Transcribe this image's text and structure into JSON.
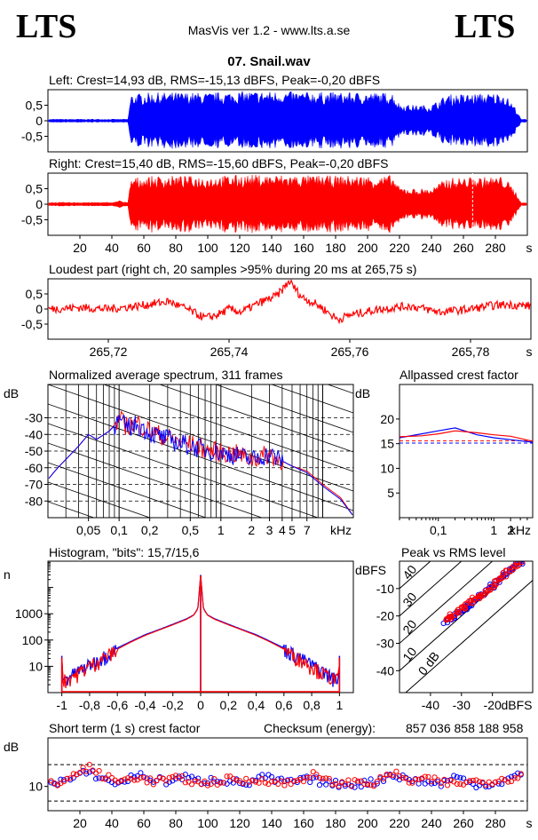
{
  "header": {
    "logo_left": "LTS",
    "logo_right": "LTS",
    "app_title": "MasVis ver 1.2 - www.lts.a.se",
    "file_name": "07. Snail.wav"
  },
  "colors": {
    "left": "#0000ff",
    "right": "#ff0000",
    "black": "#000000"
  },
  "chart_data": [
    {
      "id": "left-waveform",
      "type": "area",
      "title": "Left: Crest=14,93 dB, RMS=-15,13 dBFS, Peak=-0,20 dBFS",
      "ytick_labels": [
        "0,5",
        "0",
        "-0,5"
      ],
      "yticks": [
        0.5,
        0,
        -0.5
      ],
      "ylim": [
        -1,
        1
      ],
      "xlim": [
        0,
        300
      ],
      "color": "#0000ff",
      "envelope": {
        "x": [
          0,
          50,
          52,
          60,
          80,
          100,
          110,
          120,
          150,
          160,
          180,
          200,
          210,
          215,
          220,
          230,
          240,
          250,
          270,
          285,
          290,
          293,
          296,
          300
        ],
        "amp": [
          0.05,
          0.05,
          0.85,
          0.9,
          0.92,
          0.9,
          0.93,
          0.95,
          0.95,
          0.93,
          0.92,
          0.92,
          0.9,
          0.95,
          0.55,
          0.5,
          0.52,
          0.85,
          0.88,
          0.9,
          0.6,
          0.4,
          0.05,
          0.05
        ]
      }
    },
    {
      "id": "right-waveform",
      "type": "area",
      "title": "Right: Crest=15,40 dB, RMS=-15,60 dBFS, Peak=-0,20 dBFS",
      "ytick_labels": [
        "0,5",
        "0",
        "-0,5"
      ],
      "yticks": [
        0.5,
        0,
        -0.5
      ],
      "ylim": [
        -1,
        1
      ],
      "xlim": [
        0,
        300
      ],
      "xticks": [
        20,
        40,
        60,
        80,
        100,
        120,
        140,
        160,
        180,
        200,
        220,
        240,
        260,
        280
      ],
      "xtick_labels": [
        "20",
        "40",
        "60",
        "80",
        "100",
        "120",
        "140",
        "160",
        "180",
        "200",
        "220",
        "240",
        "260",
        "280"
      ],
      "xunit": "s",
      "color": "#ff0000",
      "marker_x": 265.75,
      "envelope": {
        "x": [
          0,
          40,
          45,
          50,
          52,
          60,
          80,
          100,
          120,
          150,
          160,
          180,
          200,
          210,
          215,
          220,
          230,
          240,
          250,
          270,
          285,
          290,
          293,
          296,
          300
        ],
        "amp": [
          0.06,
          0.06,
          0.12,
          0.05,
          0.85,
          0.9,
          0.92,
          0.9,
          0.95,
          0.95,
          0.93,
          0.92,
          0.92,
          0.9,
          0.95,
          0.55,
          0.5,
          0.52,
          0.85,
          0.88,
          0.9,
          0.6,
          0.4,
          0.05,
          0.05
        ]
      }
    },
    {
      "id": "loudest-part",
      "type": "line",
      "title": "Loudest part (right ch, 20 samples >95% during 20 ms at 265,75 s)",
      "ytick_labels": [
        "0,5",
        "0",
        "-0,5"
      ],
      "yticks": [
        0.5,
        0,
        -0.5
      ],
      "ylim": [
        -1,
        1
      ],
      "xlim": [
        265.71,
        265.79
      ],
      "xticks": [
        265.72,
        265.74,
        265.76,
        265.78
      ],
      "xtick_labels": [
        "265,72",
        "265,74",
        "265,76",
        "265,78"
      ],
      "xunit": "s",
      "color": "#ff0000",
      "x": [
        265.71,
        265.715,
        265.72,
        265.725,
        265.73,
        265.733,
        265.736,
        265.738,
        265.74,
        265.742,
        265.745,
        265.748,
        265.75,
        265.752,
        265.755,
        265.758,
        265.76,
        265.765,
        265.77,
        265.775,
        265.78,
        265.783,
        265.786,
        265.79
      ],
      "y": [
        0.0,
        0.05,
        0.0,
        0.1,
        0.25,
        0.0,
        -0.3,
        -0.2,
        0.0,
        -0.1,
        0.2,
        0.45,
        0.92,
        0.4,
        0.1,
        -0.35,
        -0.2,
        0.0,
        0.1,
        -0.1,
        0.0,
        0.1,
        0.15,
        0.1
      ]
    },
    {
      "id": "avg-spectrum",
      "type": "line",
      "title": "Normalized average spectrum, 311 frames",
      "ylabel": "dB",
      "ytick_labels": [
        "-30",
        "-40",
        "-50",
        "-60",
        "-70",
        "-80"
      ],
      "yticks": [
        -30,
        -40,
        -50,
        -60,
        -70,
        -80
      ],
      "ylim": [
        -90,
        -10
      ],
      "xscale": "log",
      "xlim": [
        0.02,
        20
      ],
      "xticks": [
        0.05,
        0.1,
        0.2,
        0.5,
        1,
        2,
        3,
        4,
        5,
        7
      ],
      "xtick_labels": [
        "0,05",
        "0,1",
        "0,2",
        "0,5",
        "1",
        "2",
        "3",
        "4",
        "5",
        "7"
      ],
      "xunit": "kHz",
      "series": [
        {
          "color": "#ff0000",
          "x": [
            0.02,
            0.025,
            0.03,
            0.04,
            0.05,
            0.06,
            0.08,
            0.1,
            0.12,
            0.15,
            0.2,
            0.3,
            0.5,
            0.7,
            1,
            1.5,
            2,
            3,
            4,
            5,
            7,
            10,
            15,
            20
          ],
          "y": [
            -67,
            -60,
            -55,
            -47,
            -40,
            -43,
            -38,
            -31,
            -35,
            -33,
            -38,
            -42,
            -46,
            -49,
            -51,
            -52,
            -55,
            -52,
            -56,
            -59,
            -62,
            -70,
            -78,
            -89
          ]
        },
        {
          "color": "#0000ff",
          "x": [
            0.02,
            0.025,
            0.03,
            0.04,
            0.05,
            0.06,
            0.08,
            0.1,
            0.12,
            0.15,
            0.2,
            0.3,
            0.5,
            0.7,
            1,
            1.5,
            2,
            3,
            4,
            5,
            7,
            10,
            15,
            20
          ],
          "y": [
            -67,
            -60,
            -55,
            -47,
            -40,
            -43,
            -38,
            -32,
            -36,
            -34,
            -39,
            -43,
            -47,
            -49,
            -51,
            -53,
            -55,
            -52,
            -56,
            -59,
            -63,
            -71,
            -79,
            -89
          ]
        }
      ]
    },
    {
      "id": "allpassed-crest",
      "type": "line",
      "title": "Allpassed crest factor",
      "ylabel": "dB",
      "ytick_labels": [
        "20",
        "15",
        "10",
        "5"
      ],
      "yticks": [
        20,
        15,
        10,
        5
      ],
      "ylim": [
        0,
        27
      ],
      "xscale": "log",
      "xlim": [
        0.02,
        5
      ],
      "xticks": [
        0.1,
        1,
        2
      ],
      "xtick_labels": [
        "0,1",
        "1",
        "2"
      ],
      "xunit": "kHz",
      "ref_lines": [
        15.13,
        15.6
      ],
      "series": [
        {
          "color": "#0000ff",
          "x": [
            0.02,
            0.05,
            0.1,
            0.2,
            0.5,
            1,
            2,
            5
          ],
          "y": [
            16.2,
            17.0,
            17.6,
            18.2,
            16.8,
            16.2,
            15.8,
            15.3
          ]
        },
        {
          "color": "#ff0000",
          "x": [
            0.02,
            0.05,
            0.1,
            0.2,
            0.5,
            1,
            2,
            5
          ],
          "y": [
            16.4,
            16.6,
            17.0,
            17.6,
            17.2,
            16.8,
            16.5,
            15.5
          ]
        }
      ]
    },
    {
      "id": "histogram",
      "type": "line",
      "title": "Histogram, \"bits\": 15,7/15,6",
      "ylabel": "n",
      "ytick_labels": [
        "1000",
        "100",
        "10"
      ],
      "yticks": [
        1000,
        100,
        10
      ],
      "yscale": "log",
      "ylim": [
        1,
        100000
      ],
      "xlim": [
        -1.1,
        1.1
      ],
      "xticks": [
        -1,
        -0.8,
        -0.6,
        -0.4,
        -0.2,
        0,
        0.2,
        0.4,
        0.6,
        0.8,
        1
      ],
      "xtick_labels": [
        "-1",
        "-0,8",
        "-0,6",
        "-0,4",
        "-0,2",
        "0",
        "0,2",
        "0,4",
        "0,6",
        "0,8",
        "1"
      ],
      "series": [
        {
          "color": "#0000ff",
          "x": [
            -1,
            -0.99,
            -0.9,
            -0.8,
            -0.7,
            -0.6,
            -0.5,
            -0.4,
            -0.3,
            -0.2,
            -0.1,
            -0.05,
            -0.02,
            0,
            0.02,
            0.05,
            0.1,
            0.2,
            0.3,
            0.4,
            0.5,
            0.6,
            0.7,
            0.8,
            0.9,
            0.99,
            1
          ],
          "y": [
            25,
            3,
            6,
            12,
            25,
            50,
            90,
            160,
            250,
            400,
            650,
            900,
            1600,
            30000,
            1600,
            900,
            650,
            400,
            250,
            160,
            90,
            50,
            25,
            12,
            6,
            3,
            25
          ]
        },
        {
          "color": "#ff0000",
          "x": [
            -1,
            -0.99,
            -0.9,
            -0.8,
            -0.7,
            -0.6,
            -0.5,
            -0.4,
            -0.3,
            -0.2,
            -0.1,
            -0.05,
            -0.02,
            0,
            0.02,
            0.05,
            0.1,
            0.2,
            0.3,
            0.4,
            0.5,
            0.6,
            0.7,
            0.8,
            0.9,
            0.99,
            1
          ],
          "y": [
            22,
            3,
            5,
            11,
            22,
            45,
            85,
            150,
            240,
            380,
            620,
            880,
            1550,
            28000,
            1550,
            880,
            620,
            380,
            240,
            150,
            85,
            45,
            22,
            11,
            5,
            3,
            22
          ]
        }
      ]
    },
    {
      "id": "peak-vs-rms",
      "type": "scatter",
      "title": "Peak vs RMS level",
      "ylabel": "dBFS",
      "xlabel": "dBFS",
      "ytick_labels": [
        "-10",
        "-20",
        "-30",
        "-40"
      ],
      "yticks": [
        -10,
        -20,
        -30,
        -40
      ],
      "ylim": [
        -48,
        0
      ],
      "xlim": [
        -50,
        -7
      ],
      "xticks": [
        -40,
        -30,
        -20
      ],
      "xtick_labels": [
        "-40",
        "-30",
        "-20"
      ],
      "diagonal_labels": [
        "40",
        "30",
        "20",
        "10",
        "0 dB"
      ],
      "diagonals": [
        40,
        30,
        20,
        10,
        0
      ],
      "series": [
        {
          "color": "#0000ff",
          "x": [
            -35,
            -34,
            -33,
            -32,
            -31,
            -30,
            -29,
            -28,
            -27,
            -26,
            -25,
            -24,
            -23,
            -22,
            -21,
            -20,
            -19,
            -18,
            -17,
            -16,
            -15,
            -14,
            -13,
            -12,
            -11
          ],
          "y": [
            -22,
            -21,
            -21,
            -20,
            -19,
            -18,
            -17,
            -16,
            -16,
            -15,
            -14,
            -13,
            -12,
            -11,
            -10,
            -9,
            -8,
            -7,
            -6,
            -5,
            -4,
            -3,
            -2,
            -1,
            -1
          ]
        },
        {
          "color": "#ff0000",
          "x": [
            -35,
            -34,
            -33,
            -32,
            -31,
            -30,
            -29,
            -28,
            -27,
            -26,
            -25,
            -24,
            -23,
            -22,
            -21,
            -20,
            -19,
            -18,
            -17,
            -16,
            -15,
            -14,
            -13,
            -12,
            -11
          ],
          "y": [
            -21,
            -21,
            -20,
            -19,
            -18,
            -17,
            -17,
            -16,
            -15,
            -14,
            -13,
            -13,
            -12,
            -11,
            -10,
            -9,
            -8,
            -7,
            -6,
            -5,
            -4,
            -3,
            -2,
            -1,
            -1
          ]
        }
      ]
    },
    {
      "id": "short-term-crest",
      "type": "scatter",
      "title": "Short term (1 s) crest factor",
      "checksum_label": "Checksum (energy):",
      "checksum_value": "857 036 858 188 958",
      "ylabel": "dB",
      "ytick_labels": [
        "10"
      ],
      "yticks": [
        10
      ],
      "ylim": [
        0,
        30
      ],
      "ref_lines": [
        19,
        4
      ],
      "xlim": [
        0,
        300
      ],
      "xticks": [
        20,
        40,
        60,
        80,
        100,
        120,
        140,
        160,
        180,
        200,
        220,
        240,
        260,
        280
      ],
      "xtick_labels": [
        "20",
        "40",
        "60",
        "80",
        "100",
        "120",
        "140",
        "160",
        "180",
        "200",
        "220",
        "240",
        "260",
        "280"
      ],
      "xunit": "s",
      "series": [
        {
          "color": "#0000ff",
          "x": [
            5,
            15,
            25,
            35,
            45,
            55,
            65,
            75,
            85,
            95,
            105,
            115,
            125,
            135,
            145,
            155,
            165,
            175,
            185,
            195,
            205,
            215,
            225,
            235,
            245,
            255,
            265,
            275,
            285,
            295
          ],
          "y": [
            12,
            13,
            16,
            13,
            11,
            15,
            13,
            12,
            14,
            12,
            13,
            12,
            11,
            14,
            12,
            12,
            13,
            11,
            11,
            11,
            12,
            15,
            13,
            12,
            11,
            14,
            11,
            11,
            12,
            15
          ]
        },
        {
          "color": "#ff0000",
          "x": [
            5,
            15,
            25,
            35,
            45,
            55,
            65,
            75,
            85,
            95,
            105,
            115,
            125,
            135,
            145,
            155,
            165,
            175,
            185,
            195,
            205,
            215,
            225,
            235,
            245,
            255,
            265,
            275,
            285,
            295
          ],
          "y": [
            11,
            14,
            18,
            14,
            12,
            14,
            12,
            13,
            13,
            11,
            12,
            13,
            12,
            13,
            11,
            12,
            15,
            12,
            11,
            12,
            11,
            16,
            12,
            13,
            12,
            11,
            12,
            12,
            13,
            14
          ]
        }
      ]
    }
  ]
}
